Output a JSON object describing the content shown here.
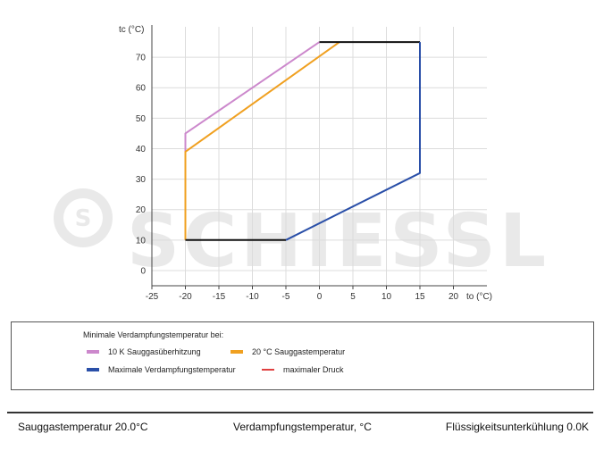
{
  "chart_data": {
    "type": "line",
    "xlabel": "to (°C)",
    "ylabel": "tc (°C)",
    "xlim": [
      -25,
      25
    ],
    "ylim": [
      -5,
      80
    ],
    "xticks": [
      -25,
      -20,
      -15,
      -10,
      -5,
      0,
      5,
      10,
      15,
      20
    ],
    "yticks": [
      0,
      10,
      20,
      30,
      40,
      50,
      60,
      70
    ],
    "grid": true,
    "series": [
      {
        "name": "10 K Sauggasüberhitzung",
        "color": "#cc88cc",
        "x": [
          -20,
          -20,
          0
        ],
        "y": [
          10,
          45,
          75
        ]
      },
      {
        "name": "20 °C Sauggastemperatur",
        "color": "#f0a020",
        "x": [
          -20,
          -20,
          3
        ],
        "y": [
          10,
          39,
          75
        ]
      },
      {
        "name": "",
        "color": "#111111",
        "x": [
          0,
          15
        ],
        "y": [
          75,
          75
        ]
      },
      {
        "name": "",
        "color": "#111111",
        "x": [
          -20,
          -5
        ],
        "y": [
          10,
          10
        ]
      },
      {
        "name": "Maximale Verdampfungstemperatur",
        "color": "#2a4fa8",
        "x": [
          15,
          15,
          -5
        ],
        "y": [
          75,
          32,
          10
        ]
      },
      {
        "name": "maximaler Druck",
        "color": "#e04040",
        "x": [],
        "y": []
      }
    ]
  },
  "watermark": "SCHIESSL",
  "legend": {
    "title": "Minimale Verdampfungstemperatur bei:",
    "items": [
      {
        "label": "10 K Sauggasüberhitzung",
        "color": "#cc88cc"
      },
      {
        "label": "20 °C Sauggastemperatur",
        "color": "#f0a020"
      },
      {
        "label": "Maximale Verdampfungstemperatur",
        "color": "#2a4fa8"
      },
      {
        "label": "maximaler Druck",
        "color": "#e04040"
      }
    ]
  },
  "footer": {
    "left": "Sauggastemperatur 20.0°C",
    "center": "Verdampfungstemperatur, °C",
    "right": "Flüssigkeitsunterkühlung 0.0K"
  }
}
